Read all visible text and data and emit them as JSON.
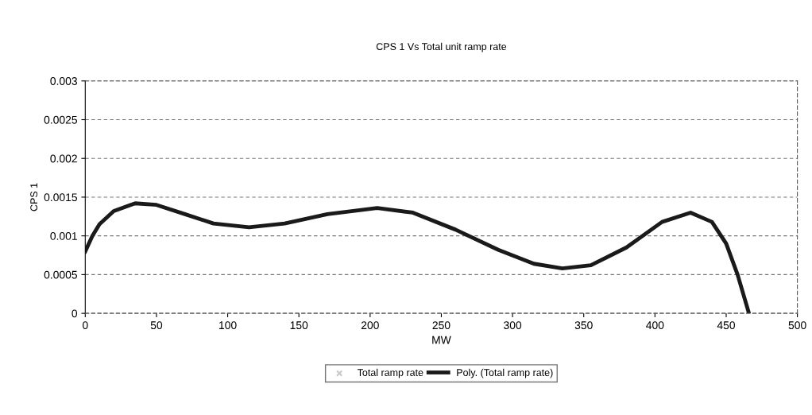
{
  "chart_data": {
    "type": "line",
    "title": "CPS 1 Vs Total unit ramp rate",
    "xlabel": "MW",
    "ylabel": "CPS 1",
    "xlim": [
      0,
      500
    ],
    "xticks": [
      0,
      50,
      100,
      150,
      200,
      250,
      300,
      350,
      400,
      450,
      500
    ],
    "ylim": [
      0,
      0.003
    ],
    "yticks": [
      0,
      0.0005,
      0.001,
      0.0015,
      0.002,
      0.0025,
      0.003
    ],
    "grid": "y",
    "legend": "bottom",
    "series": [
      {
        "name": "Total ramp rate",
        "type": "scatter",
        "marker": "cross",
        "color": "#c8c8c8"
      },
      {
        "name": "Poly. (Total ramp rate)",
        "color": "#1a1a1a",
        "x": [
          0,
          5,
          10,
          20,
          35,
          50,
          70,
          90,
          115,
          140,
          170,
          205,
          230,
          260,
          290,
          315,
          335,
          355,
          380,
          405,
          425,
          440,
          450,
          458,
          466
        ],
        "values": [
          0.0008,
          0.001,
          0.00115,
          0.00132,
          0.00142,
          0.0014,
          0.00128,
          0.00116,
          0.00111,
          0.00116,
          0.00128,
          0.00136,
          0.0013,
          0.00108,
          0.00082,
          0.00064,
          0.00058,
          0.00062,
          0.00085,
          0.00118,
          0.0013,
          0.00118,
          0.0009,
          0.0005,
          0
        ]
      }
    ]
  }
}
